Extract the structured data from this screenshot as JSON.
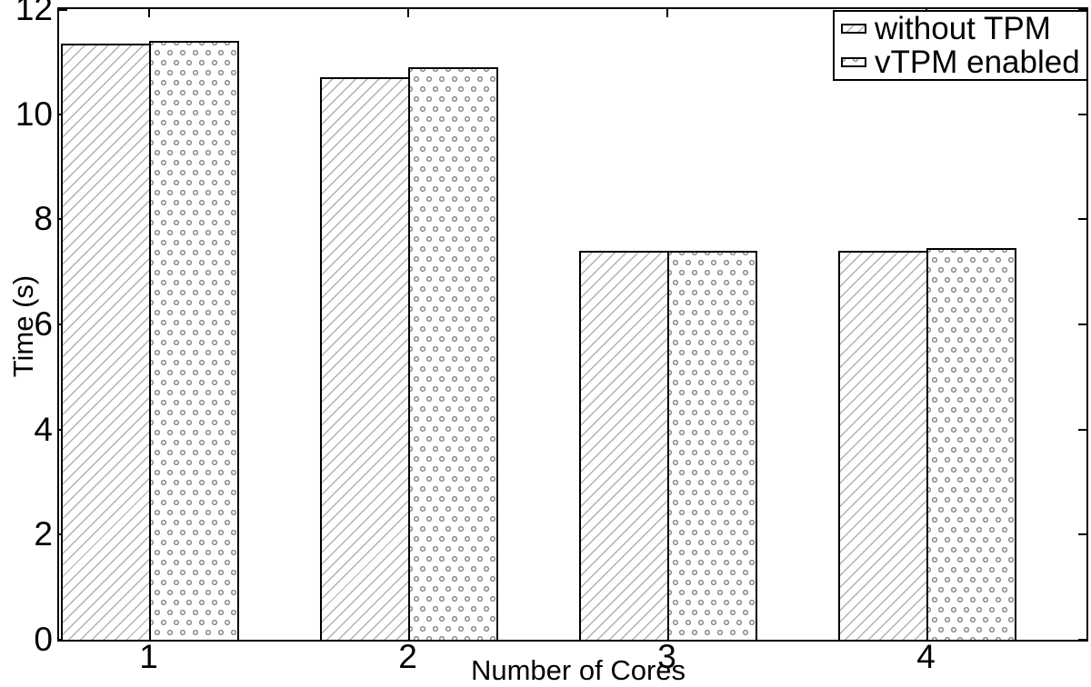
{
  "figure": {
    "background_color": "#ffffff",
    "axis_color": "#000000",
    "hatch_line_color": "#b0b0b0",
    "dot_ring_color": "#8c8c8c"
  },
  "chart_data": {
    "type": "bar",
    "title": "",
    "xlabel": "Number of Cores",
    "ylabel": "Time (s)",
    "categories": [
      "1",
      "2",
      "3",
      "4"
    ],
    "y_ticks": [
      0,
      2,
      4,
      6,
      8,
      10,
      12
    ],
    "ylim": [
      0,
      12
    ],
    "grid": false,
    "legend_position": "top-right",
    "series": [
      {
        "name": "without TPM",
        "pattern": "diagonal-hatch",
        "values": [
          11.35,
          10.7,
          7.4,
          7.4
        ]
      },
      {
        "name": "vTPM enabled",
        "pattern": "dotted-circles",
        "values": [
          11.4,
          10.9,
          7.4,
          7.45
        ]
      }
    ]
  }
}
